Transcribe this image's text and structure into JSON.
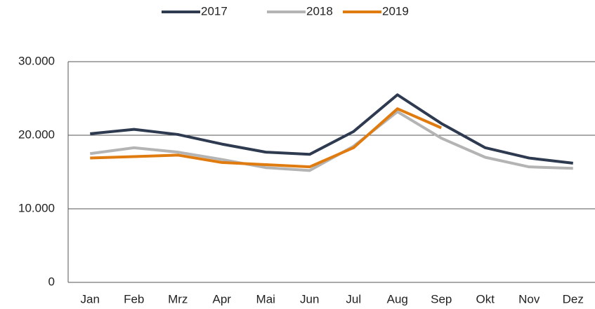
{
  "chart_data": {
    "type": "line",
    "categories": [
      "Jan",
      "Feb",
      "Mrz",
      "Apr",
      "Mai",
      "Jun",
      "Jul",
      "Aug",
      "Sep",
      "Okt",
      "Nov",
      "Dez"
    ],
    "series": [
      {
        "name": "2017",
        "color": "#2e3a4f",
        "values": [
          20200,
          20800,
          20100,
          18800,
          17700,
          17400,
          20500,
          25500,
          21600,
          18300,
          16900,
          16200
        ]
      },
      {
        "name": "2018",
        "color": "#b4b4b4",
        "values": [
          17500,
          18300,
          17700,
          16700,
          15600,
          15200,
          18500,
          23200,
          19600,
          17000,
          15700,
          15500
        ]
      },
      {
        "name": "2019",
        "color": "#e07b10",
        "values": [
          16900,
          17100,
          17300,
          16300,
          16000,
          15700,
          18300,
          23600,
          21000,
          null,
          null,
          null
        ]
      }
    ],
    "ylim": [
      0,
      30000
    ],
    "yticks": [
      0,
      {
        "value": 10000,
        "label": "10.000"
      },
      {
        "value": 20000,
        "label": "20.000"
      },
      {
        "value": 30000,
        "label": "30.000"
      }
    ],
    "grid": true,
    "legend": "top"
  }
}
